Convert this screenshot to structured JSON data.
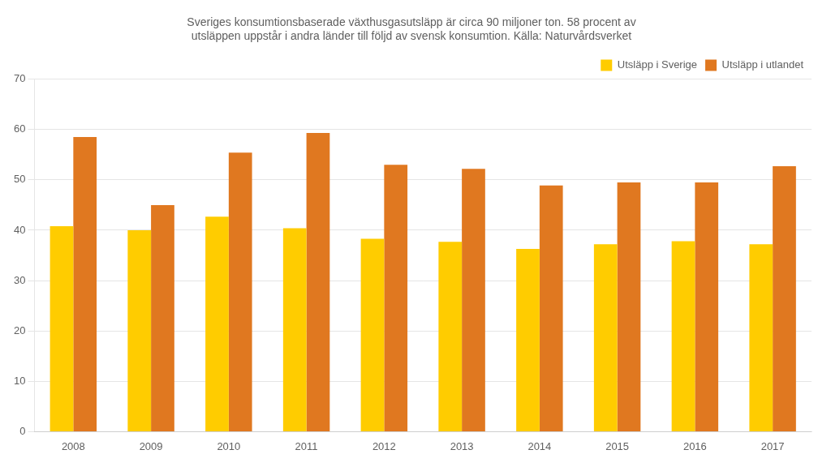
{
  "chart_data": {
    "type": "bar",
    "title": "Sveriges konsumtionsbaserade växthusgasutsläpp är circa 90 miljoner ton. 58 procent av\nutsläppen uppstår i andra länder till följd av svensk konsumtion. Källa: Naturvårdsverket",
    "categories": [
      "2008",
      "2009",
      "2010",
      "2011",
      "2012",
      "2013",
      "2014",
      "2015",
      "2016",
      "2017"
    ],
    "series": [
      {
        "name": "Utsläpp i Sverige",
        "color": "#FFCC00",
        "values": [
          40.8,
          40.0,
          42.7,
          40.4,
          38.3,
          37.7,
          36.3,
          37.2,
          37.8,
          37.2
        ]
      },
      {
        "name": "Utsläpp i utlandet",
        "color": "#E07820",
        "values": [
          58.5,
          45.0,
          55.4,
          59.3,
          53.0,
          52.2,
          48.9,
          49.5,
          49.5,
          52.7
        ]
      }
    ],
    "ylim": [
      0,
      70
    ],
    "yticks": [
      0,
      10,
      20,
      30,
      40,
      50,
      60,
      70
    ],
    "grid": true,
    "legend": "upper right"
  }
}
